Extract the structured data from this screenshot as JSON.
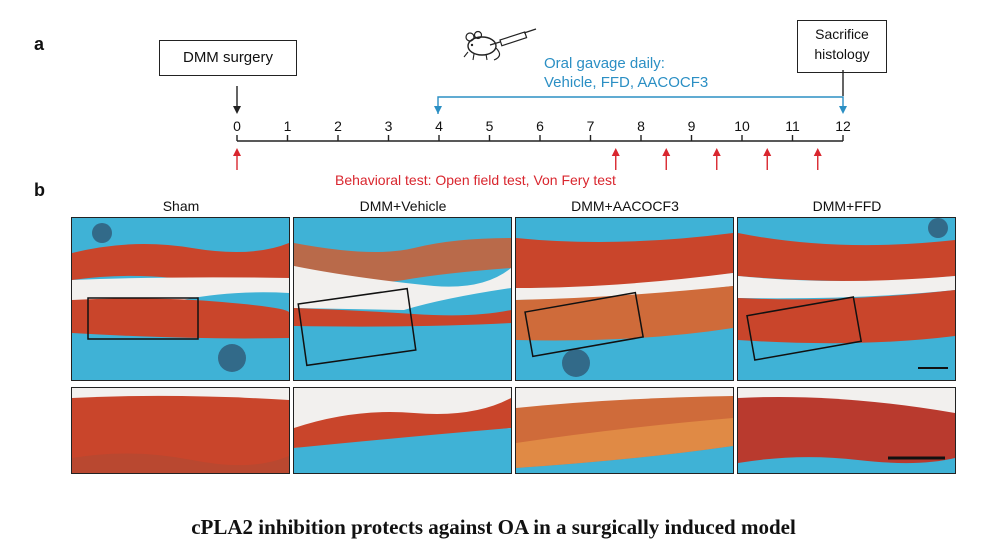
{
  "panel_a": {
    "letter": "a",
    "start_box": "DMM surgery",
    "end_box_line1": "Sacrifice",
    "end_box_line2": "histology",
    "gavage_line1": "Oral gavage daily:",
    "gavage_line2": "Vehicle, FFD, AACOCF3",
    "timeline_ticks": [
      "0",
      "1",
      "2",
      "3",
      "4",
      "5",
      "6",
      "7",
      "8",
      "9",
      "10",
      "11",
      "12"
    ],
    "behavioral_test": "Behavioral test: Open field test, Von Fery test",
    "mouse_icon": "mouse-gavage-icon",
    "colors": {
      "blue": "#2b8fc4",
      "red": "#d9262e"
    }
  },
  "panel_b": {
    "letter": "b",
    "groups": [
      "Sham",
      "DMM+Vehicle",
      "DMM+AACOCF3",
      "DMM+FFD"
    ],
    "colors": {
      "bone": "#3fb2d6",
      "cartilage": "#c9452b",
      "space": "#f2f0ee"
    }
  },
  "caption": "cPLA2 inhibition protects against OA in a surgically induced model"
}
